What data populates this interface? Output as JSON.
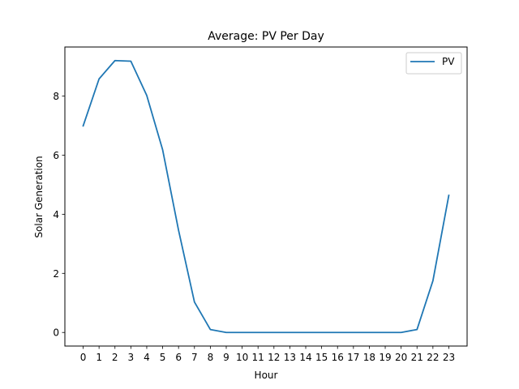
{
  "chart_data": {
    "type": "line",
    "title": "Average: PV Per Day",
    "xlabel": "Hour",
    "ylabel": "Solar Generation",
    "x": [
      0,
      1,
      2,
      3,
      4,
      5,
      6,
      7,
      8,
      9,
      10,
      11,
      12,
      13,
      14,
      15,
      16,
      17,
      18,
      19,
      20,
      21,
      22,
      23
    ],
    "x_ticks": [
      "0",
      "1",
      "2",
      "3",
      "4",
      "5",
      "6",
      "7",
      "8",
      "9",
      "10",
      "11",
      "12",
      "13",
      "14",
      "15",
      "16",
      "17",
      "18",
      "19",
      "20",
      "21",
      "22",
      "23"
    ],
    "y_ticks": [
      0,
      2,
      4,
      6,
      8
    ],
    "xlim": [
      -1.15,
      24.15
    ],
    "ylim": [
      -0.46,
      9.66
    ],
    "grid": false,
    "legend_position": "top-right",
    "series": [
      {
        "name": "PV",
        "color": "#1f77b4",
        "values": [
          6.99,
          8.58,
          9.2,
          9.18,
          8.02,
          6.18,
          3.46,
          1.03,
          0.1,
          0.0,
          0.0,
          0.0,
          0.0,
          0.0,
          0.0,
          0.0,
          0.0,
          0.0,
          0.0,
          0.0,
          0.0,
          0.1,
          1.75,
          4.64
        ]
      }
    ]
  }
}
